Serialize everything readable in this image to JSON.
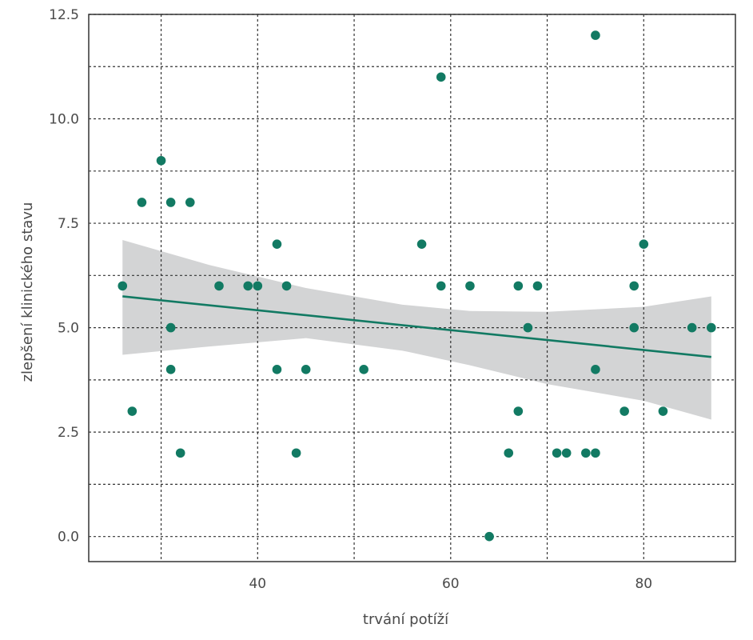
{
  "chart_data": {
    "type": "scatter",
    "title": "",
    "xlabel": "trvání potíží",
    "ylabel": "zlepšení klinického stavu",
    "xlim": [
      22.5,
      89.5
    ],
    "ylim": [
      -0.6,
      12.5
    ],
    "x_ticks": [
      {
        "value": 40,
        "label": "40"
      },
      {
        "value": 60,
        "label": "60"
      },
      {
        "value": 80,
        "label": "80"
      }
    ],
    "x_minor_grid": [
      30,
      50,
      70
    ],
    "y_ticks": [
      {
        "value": 0,
        "label": "0.0"
      },
      {
        "value": 2.5,
        "label": "2.5"
      },
      {
        "value": 5,
        "label": "5.0"
      },
      {
        "value": 7.5,
        "label": "7.5"
      },
      {
        "value": 10,
        "label": "10.0"
      },
      {
        "value": 12.5,
        "label": "12.5"
      }
    ],
    "y_minor_grid": [
      1.25,
      3.75,
      6.25,
      8.75,
      11.25
    ],
    "grid": true,
    "legend": "none",
    "colors": {
      "points": "#127a63",
      "trend_line": "#127a63",
      "confidence_band": "#d3d4d5"
    },
    "points": [
      {
        "x": 26,
        "y": 6
      },
      {
        "x": 27,
        "y": 3
      },
      {
        "x": 28,
        "y": 8
      },
      {
        "x": 30,
        "y": 9
      },
      {
        "x": 31,
        "y": 8
      },
      {
        "x": 31,
        "y": 5
      },
      {
        "x": 31,
        "y": 4
      },
      {
        "x": 32,
        "y": 2
      },
      {
        "x": 33,
        "y": 8
      },
      {
        "x": 36,
        "y": 6
      },
      {
        "x": 39,
        "y": 6
      },
      {
        "x": 40,
        "y": 6
      },
      {
        "x": 42,
        "y": 7
      },
      {
        "x": 42,
        "y": 4
      },
      {
        "x": 43,
        "y": 6
      },
      {
        "x": 44,
        "y": 2
      },
      {
        "x": 45,
        "y": 4
      },
      {
        "x": 51,
        "y": 4
      },
      {
        "x": 57,
        "y": 7
      },
      {
        "x": 59,
        "y": 11
      },
      {
        "x": 59,
        "y": 6
      },
      {
        "x": 62,
        "y": 6
      },
      {
        "x": 64,
        "y": 0
      },
      {
        "x": 66,
        "y": 2
      },
      {
        "x": 67,
        "y": 6
      },
      {
        "x": 67,
        "y": 3
      },
      {
        "x": 68,
        "y": 5
      },
      {
        "x": 69,
        "y": 6
      },
      {
        "x": 71,
        "y": 2
      },
      {
        "x": 72,
        "y": 2
      },
      {
        "x": 74,
        "y": 2
      },
      {
        "x": 75,
        "y": 12
      },
      {
        "x": 75,
        "y": 4
      },
      {
        "x": 75,
        "y": 2
      },
      {
        "x": 78,
        "y": 3
      },
      {
        "x": 79,
        "y": 6
      },
      {
        "x": 79,
        "y": 5
      },
      {
        "x": 80,
        "y": 7
      },
      {
        "x": 82,
        "y": 3
      },
      {
        "x": 85,
        "y": 5
      },
      {
        "x": 87,
        "y": 5
      }
    ],
    "trend_line": {
      "x": [
        26,
        87
      ],
      "y": [
        5.75,
        4.3
      ]
    },
    "confidence_band": {
      "upper": [
        [
          26,
          7.1
        ],
        [
          35,
          6.5
        ],
        [
          45,
          5.95
        ],
        [
          55,
          5.55
        ],
        [
          62,
          5.4
        ],
        [
          70,
          5.38
        ],
        [
          80,
          5.5
        ],
        [
          87,
          5.75
        ]
      ],
      "lower": [
        [
          26,
          4.35
        ],
        [
          35,
          4.55
        ],
        [
          45,
          4.75
        ],
        [
          55,
          4.45
        ],
        [
          62,
          4.1
        ],
        [
          70,
          3.65
        ],
        [
          80,
          3.25
        ],
        [
          87,
          2.8
        ]
      ]
    }
  }
}
